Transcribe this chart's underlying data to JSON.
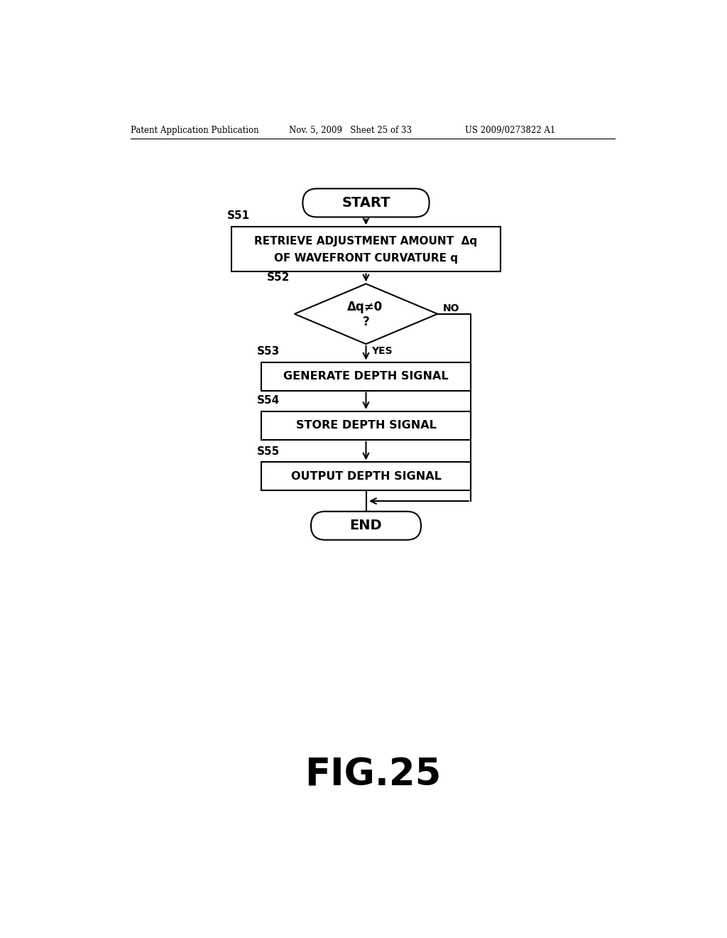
{
  "bg_color": "#ffffff",
  "header_left": "Patent Application Publication",
  "header_mid": "Nov. 5, 2009   Sheet 25 of 33",
  "header_right": "US 2009/0273822 A1",
  "fig_label": "FIG.25",
  "start_label": "START",
  "end_label": "END",
  "s51_label_top": "RETRIEVE ADJUSTMENT AMOUNT  Δq",
  "s51_label_bot": "OF WAVEFRONT CURVATURE q",
  "s52_label_top": "Δq≠0",
  "s52_label_bot": "?",
  "s53_label": "GENERATE DEPTH SIGNAL",
  "s54_label": "STORE DEPTH SIGNAL",
  "s55_label": "OUTPUT DEPTH SIGNAL",
  "yes_label": "YES",
  "no_label": "NO",
  "step_labels": [
    "S51",
    "S52",
    "S53",
    "S54",
    "S55"
  ]
}
